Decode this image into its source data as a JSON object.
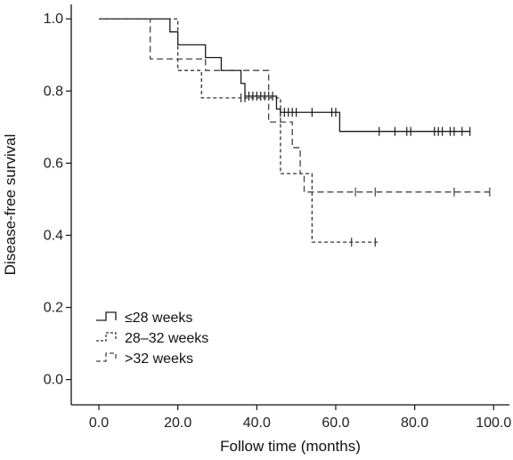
{
  "chart_data": {
    "type": "line",
    "xlabel": "Follow time (months)",
    "ylabel": "Disease-free survival",
    "xlim": [
      -7,
      104
    ],
    "ylim": [
      -0.07,
      1.04
    ],
    "x_ticks": [
      "0.0",
      "20.0",
      "40.0",
      "60.0",
      "80.0",
      "100.0"
    ],
    "y_ticks": [
      "0.0",
      "0.2",
      "0.4",
      "0.6",
      "0.8",
      "1.0"
    ],
    "grid": false,
    "legend_position": "bottom-left",
    "series": [
      {
        "name": "≤28 weeks",
        "line_style": "solid",
        "color": "#1a1a1a",
        "steps": [
          [
            0,
            1.0
          ],
          [
            18,
            0.964
          ],
          [
            20,
            0.928
          ],
          [
            27,
            0.893
          ],
          [
            31,
            0.857
          ],
          [
            36,
            0.821
          ],
          [
            37,
            0.786
          ],
          [
            45,
            0.75
          ],
          [
            46,
            0.741
          ],
          [
            61,
            0.688
          ],
          [
            94,
            0.688
          ]
        ],
        "censored": [
          [
            37,
            0.786
          ],
          [
            38,
            0.786
          ],
          [
            39,
            0.786
          ],
          [
            40,
            0.786
          ],
          [
            41,
            0.786
          ],
          [
            42,
            0.786
          ],
          [
            43,
            0.786
          ],
          [
            44,
            0.786
          ],
          [
            46,
            0.741
          ],
          [
            47,
            0.741
          ],
          [
            48,
            0.741
          ],
          [
            49,
            0.741
          ],
          [
            50,
            0.741
          ],
          [
            54,
            0.741
          ],
          [
            59,
            0.741
          ],
          [
            60,
            0.741
          ],
          [
            71,
            0.688
          ],
          [
            75,
            0.688
          ],
          [
            78,
            0.688
          ],
          [
            79,
            0.688
          ],
          [
            85,
            0.688
          ],
          [
            86,
            0.688
          ],
          [
            87,
            0.688
          ],
          [
            89,
            0.688
          ],
          [
            90,
            0.688
          ],
          [
            92,
            0.688
          ],
          [
            94,
            0.688
          ]
        ]
      },
      {
        "name": "28–32 weeks",
        "line_style": "dashed",
        "color": "#333333",
        "steps": [
          [
            0,
            1.0
          ],
          [
            20,
            0.857
          ],
          [
            26,
            0.781
          ],
          [
            42,
            0.781
          ],
          [
            46,
            0.571
          ],
          [
            50,
            0.571
          ],
          [
            51,
            0.571
          ],
          [
            54,
            0.381
          ],
          [
            71,
            0.381
          ]
        ],
        "censored": [
          [
            36,
            0.781
          ],
          [
            37,
            0.781
          ],
          [
            64,
            0.381
          ],
          [
            70,
            0.381
          ]
        ]
      },
      {
        "name": ">32 weeks",
        "line_style": "dashed",
        "color": "#444444",
        "steps": [
          [
            0,
            1.0
          ],
          [
            13,
            0.889
          ],
          [
            27,
            0.857
          ],
          [
            42,
            0.857
          ],
          [
            43,
            0.714
          ],
          [
            45,
            0.714
          ],
          [
            49,
            0.643
          ],
          [
            51,
            0.571
          ],
          [
            52,
            0.52
          ],
          [
            99,
            0.52
          ]
        ],
        "censored": [
          [
            65,
            0.52
          ],
          [
            70,
            0.52
          ],
          [
            90,
            0.52
          ],
          [
            99,
            0.52
          ]
        ]
      }
    ]
  }
}
